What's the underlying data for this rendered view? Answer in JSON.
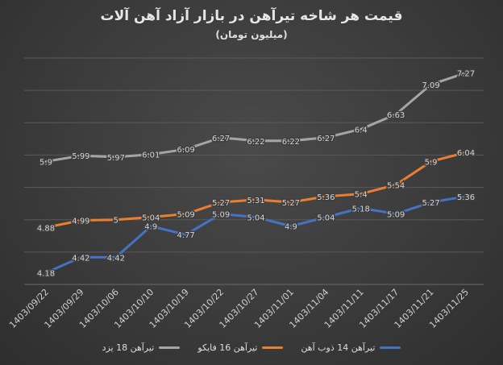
{
  "chart_data": {
    "type": "line",
    "title": "قیمت هر شاخه تیرآهن در بازار آزاد آهن آلات",
    "subtitle": "(میلیون تومان)",
    "categories": [
      "1403/09/22",
      "1403/09/29",
      "1403/10/06",
      "1403/10/10",
      "1403/10/19",
      "1403/10/22",
      "1403/10/27",
      "1403/11/01",
      "1403/11/04",
      "1403/11/11",
      "1403/11/17",
      "1403/11/21",
      "1403/11/25"
    ],
    "series": [
      {
        "name": "تیرآهن 14 ذوب آهن",
        "color": "#4472c4",
        "values": [
          4.18,
          4.42,
          4.42,
          4.9,
          4.77,
          5.09,
          5.04,
          4.9,
          5.04,
          5.18,
          5.09,
          5.27,
          5.36
        ]
      },
      {
        "name": "تیرآهن 16 فایکو",
        "color": "#ed7d31",
        "values": [
          4.88,
          4.99,
          5,
          5.04,
          5.09,
          5.27,
          5.31,
          5.27,
          5.36,
          5.4,
          5.54,
          5.9,
          6.04
        ]
      },
      {
        "name": "تیرآهن 18 یزد",
        "color": "#a5a5a5",
        "values": [
          5.9,
          5.99,
          5.97,
          6.01,
          6.09,
          6.27,
          6.22,
          6.22,
          6.27,
          6.4,
          6.63,
          7.09,
          7.27
        ]
      }
    ],
    "ylim": [
      4,
      7.5
    ],
    "grid": true,
    "legend_position": "bottom"
  }
}
